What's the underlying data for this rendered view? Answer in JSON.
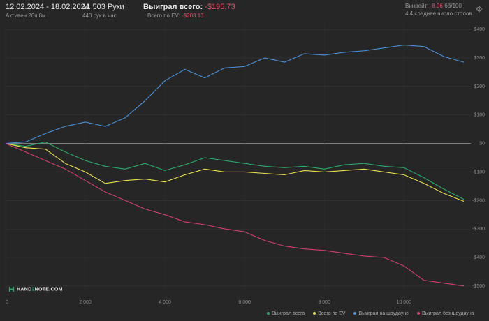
{
  "header": {
    "date_range": "12.02.2024 - 18.02.2024",
    "active": "Активен 26ч 8м",
    "hands": "11 503 Руки",
    "hands_rate": "440 рук в час",
    "won_label": "Выиграл всего:",
    "won_value": "-$195.73",
    "ev_label": "Всего по EV:",
    "ev_value": "-$203.13",
    "winrate_label": "Винрейт:",
    "winrate_value": "-8.96",
    "winrate_unit": "бб/100",
    "avg_tables": "4.4 среднее число столов"
  },
  "logo": {
    "text_pre": "HAND",
    "text_x": "2",
    "text_post": "NOTE.COM"
  },
  "icons": {
    "settings": "gear-icon"
  },
  "colors": {
    "background": "#262626",
    "won": "#2ca86a",
    "ev": "#e8e04a",
    "showdown": "#4a8fd6",
    "nonshowdown": "#d23f6e",
    "negative": "#e0506c"
  },
  "legend": [
    {
      "label": "Выиграл всего",
      "color": "#2ca86a"
    },
    {
      "label": "Всего по EV",
      "color": "#e8e04a"
    },
    {
      "label": "Выиграл на шоудауне",
      "color": "#4a8fd6"
    },
    {
      "label": "Выиграл без шоудауна",
      "color": "#d23f6e"
    }
  ],
  "chart_data": {
    "type": "line",
    "xlim": [
      0,
      11503
    ],
    "ylim": [
      -520,
      420
    ],
    "x_ticks": [
      0,
      2000,
      4000,
      6000,
      8000,
      10000
    ],
    "x_tick_labels": [
      "0",
      "2 000",
      "4 000",
      "6 000",
      "8 000",
      "10 000"
    ],
    "y_ticks": [
      400,
      300,
      200,
      100,
      0,
      -100,
      -200,
      -300,
      -400,
      -500
    ],
    "y_tick_labels": [
      "$400",
      "$300",
      "$200",
      "$100",
      "$0",
      "-$100",
      "-$200",
      "-$300",
      "-$400",
      "-$500"
    ],
    "grid": true,
    "legend_position": "bottom-right",
    "series": [
      {
        "name": "Выиграл всего",
        "color": "#2ca86a",
        "x": [
          0,
          500,
          1000,
          1500,
          2000,
          2500,
          3000,
          3500,
          4000,
          4500,
          5000,
          5500,
          6000,
          6500,
          7000,
          7500,
          8000,
          8500,
          9000,
          9500,
          10000,
          10500,
          11000,
          11503
        ],
        "y": [
          0,
          -10,
          5,
          -30,
          -60,
          -80,
          -90,
          -70,
          -95,
          -75,
          -50,
          -60,
          -70,
          -80,
          -85,
          -80,
          -90,
          -75,
          -70,
          -80,
          -85,
          -120,
          -160,
          -196
        ]
      },
      {
        "name": "Всего по EV",
        "color": "#e8e04a",
        "x": [
          0,
          500,
          1000,
          1500,
          2000,
          2500,
          3000,
          3500,
          4000,
          4500,
          5000,
          5500,
          6000,
          6500,
          7000,
          7500,
          8000,
          8500,
          9000,
          9500,
          10000,
          10500,
          11000,
          11503
        ],
        "y": [
          0,
          -15,
          -20,
          -70,
          -100,
          -140,
          -130,
          -125,
          -135,
          -110,
          -90,
          -100,
          -100,
          -105,
          -110,
          -95,
          -100,
          -95,
          -90,
          -100,
          -110,
          -140,
          -175,
          -203
        ]
      },
      {
        "name": "Выиграл на шоудауне",
        "color": "#4a8fd6",
        "x": [
          0,
          500,
          1000,
          1500,
          2000,
          2500,
          3000,
          3500,
          4000,
          4500,
          5000,
          5500,
          6000,
          6500,
          7000,
          7500,
          8000,
          8500,
          9000,
          9500,
          10000,
          10500,
          11000,
          11503
        ],
        "y": [
          0,
          5,
          35,
          60,
          75,
          60,
          90,
          150,
          220,
          260,
          230,
          265,
          270,
          300,
          285,
          315,
          310,
          320,
          325,
          335,
          345,
          340,
          305,
          285
        ]
      },
      {
        "name": "Выиграл без шоудауна",
        "color": "#d23f6e",
        "x": [
          0,
          500,
          1000,
          1500,
          2000,
          2500,
          3000,
          3500,
          4000,
          4500,
          5000,
          5500,
          6000,
          6500,
          7000,
          7500,
          8000,
          8500,
          9000,
          9500,
          10000,
          10500,
          11000,
          11503
        ],
        "y": [
          0,
          -30,
          -60,
          -90,
          -130,
          -170,
          -200,
          -230,
          -250,
          -275,
          -285,
          -300,
          -310,
          -340,
          -360,
          -370,
          -375,
          -385,
          -395,
          -400,
          -430,
          -480,
          -490,
          -500
        ]
      }
    ]
  }
}
